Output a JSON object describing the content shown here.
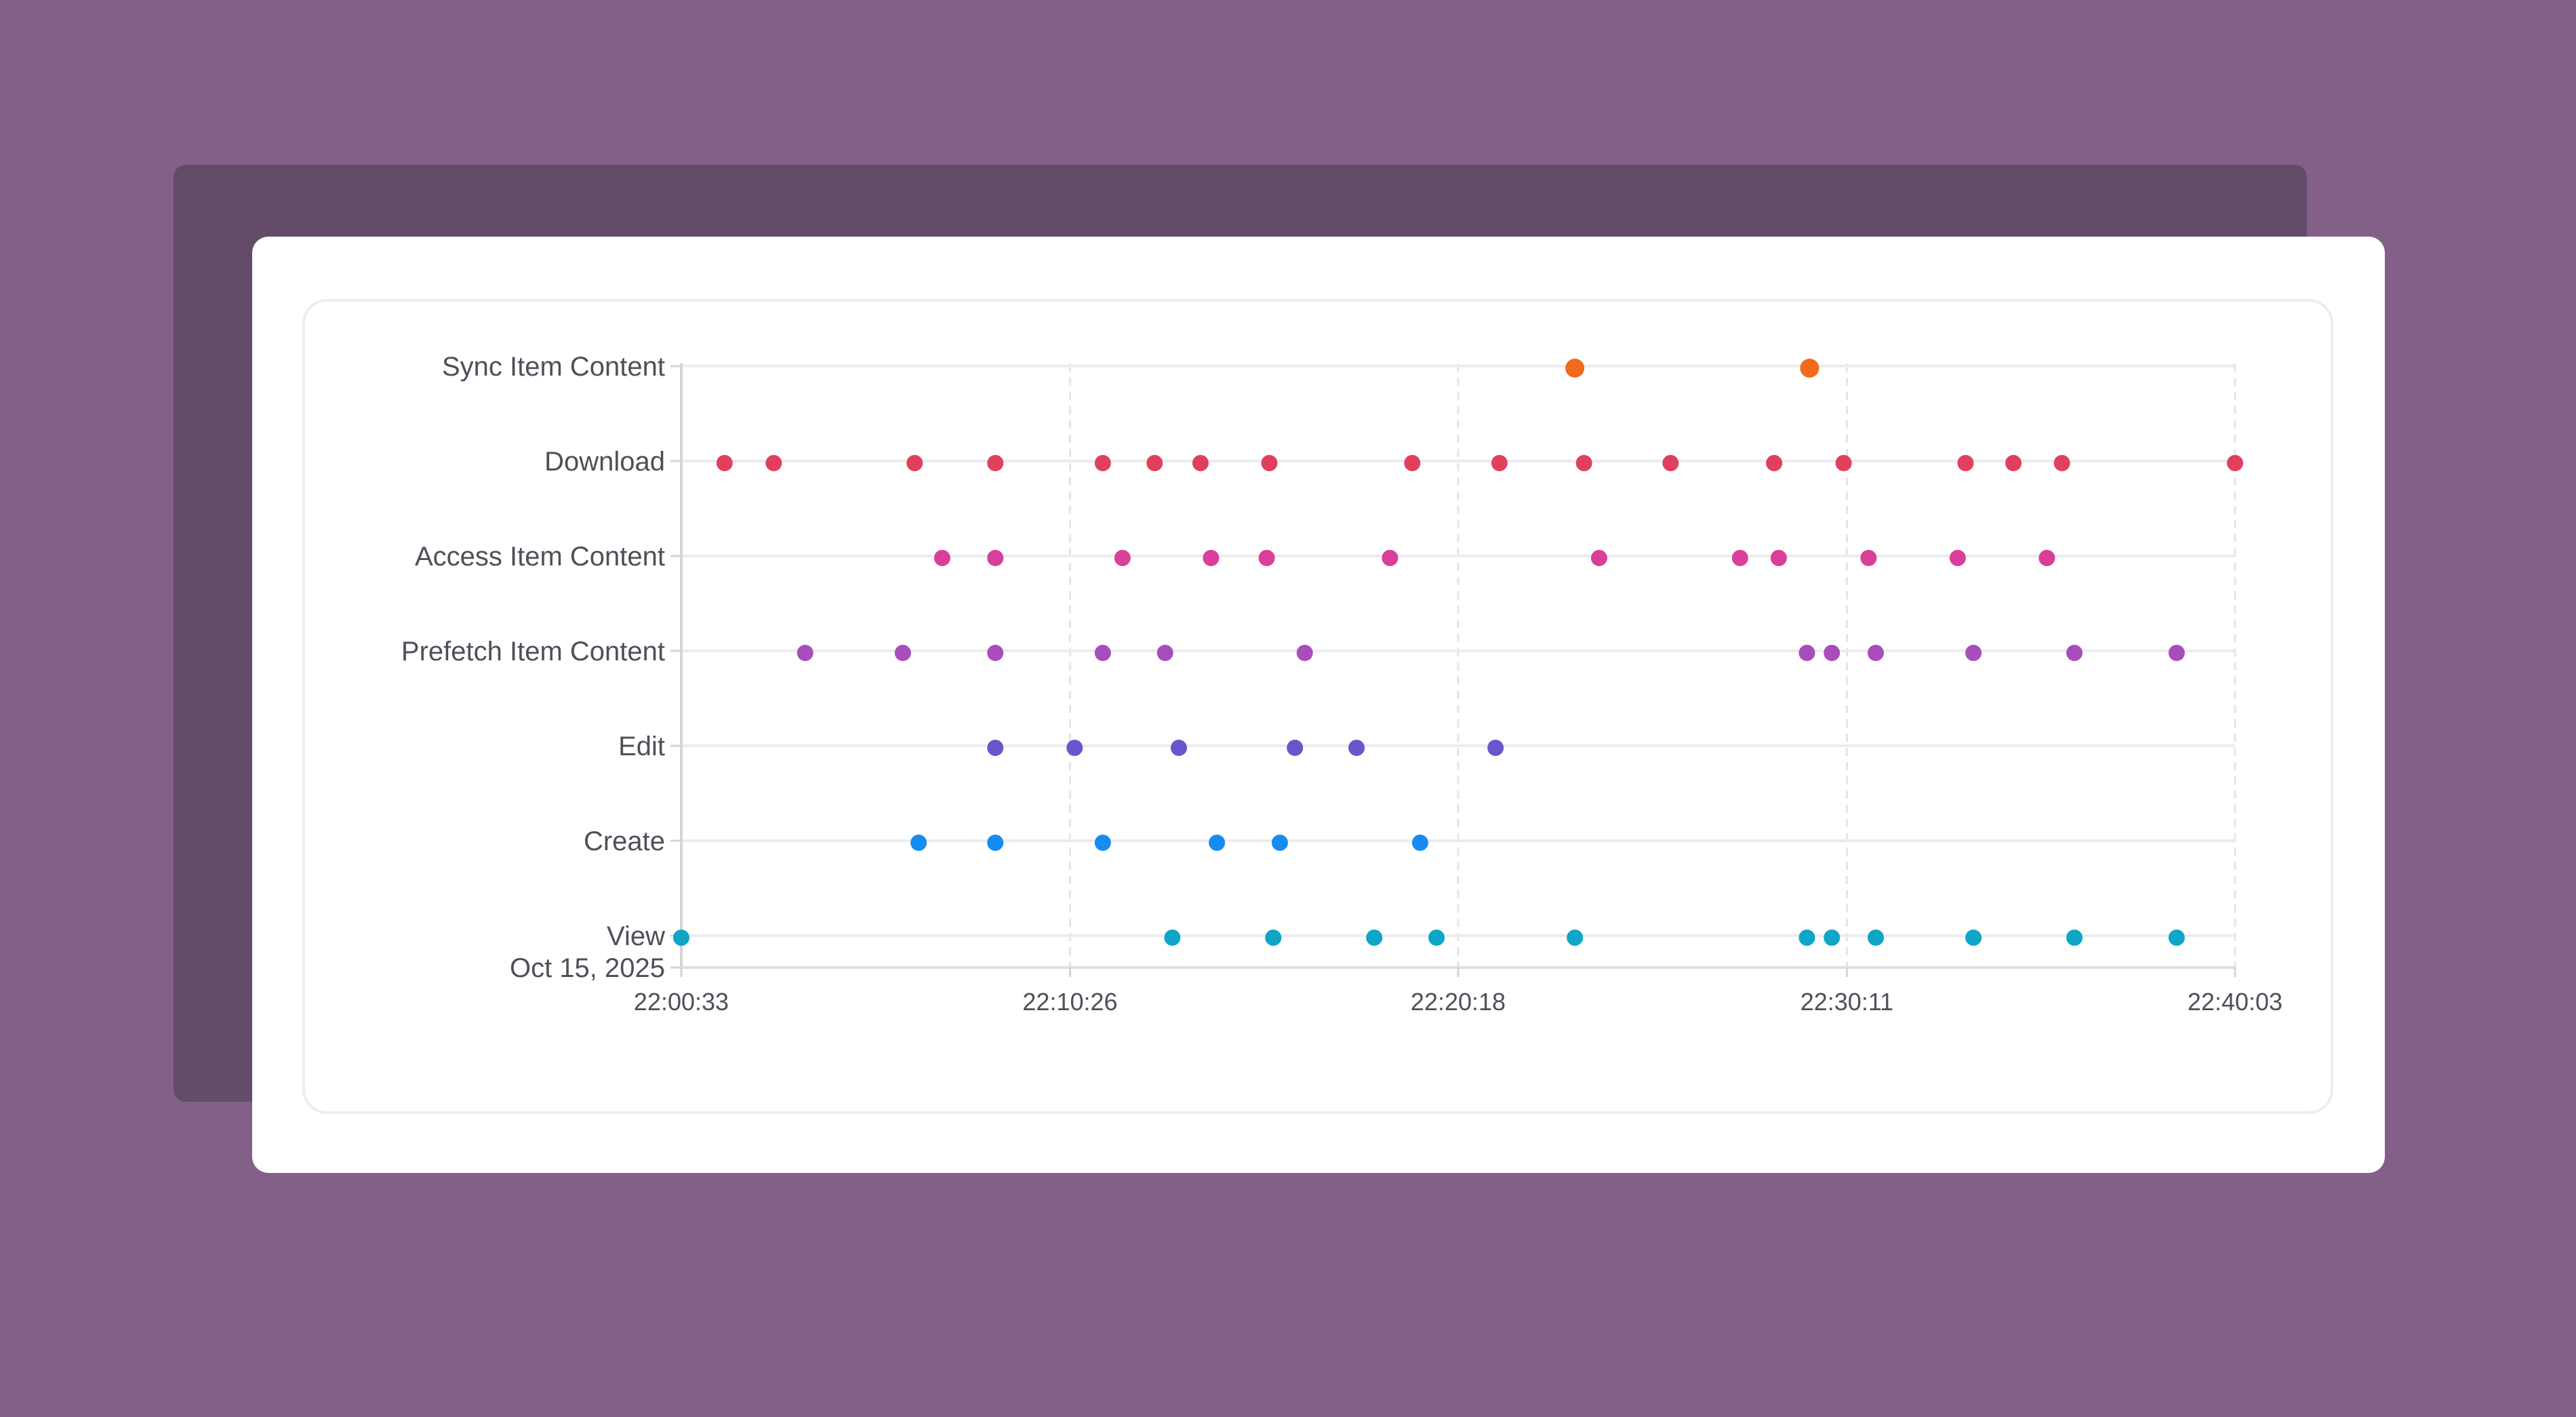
{
  "chart_data": {
    "type": "scatter",
    "title": "",
    "xlabel": "",
    "ylabel": "",
    "date_label": "Oct 15, 2025",
    "x_ticks": [
      "22:00:33",
      "22:10:26",
      "22:20:18",
      "22:30:11",
      "22:40:03"
    ],
    "xlim": [
      "22:00:33",
      "22:40:03"
    ],
    "grid": "vertical-dashed",
    "categories": [
      "Sync Item Content",
      "Download",
      "Access Item Content",
      "Prefetch Item Content",
      "Edit",
      "Create",
      "View"
    ],
    "series": [
      {
        "category": "Sync Item Content",
        "color": "#f26a1b",
        "times": [
          "22:23:16",
          "22:29:14"
        ]
      },
      {
        "category": "Download",
        "color": "#e0405e",
        "times": [
          "22:01:39",
          "22:02:54",
          "22:06:29",
          "22:08:32",
          "22:11:16",
          "22:12:35",
          "22:13:45",
          "22:15:30",
          "22:19:08",
          "22:21:21",
          "22:23:30",
          "22:25:42",
          "22:28:20",
          "22:30:06",
          "22:33:12",
          "22:34:25",
          "22:35:39",
          "22:40:03"
        ]
      },
      {
        "category": "Access Item Content",
        "color": "#d93f9a",
        "times": [
          "22:07:11",
          "22:08:32",
          "22:11:46",
          "22:14:01",
          "22:15:26",
          "22:18:34",
          "22:23:53",
          "22:27:28",
          "22:28:27",
          "22:30:44",
          "22:33:00",
          "22:35:16"
        ]
      },
      {
        "category": "Prefetch Item Content",
        "color": "#a94cbc",
        "times": [
          "22:03:42",
          "22:06:11",
          "22:08:32",
          "22:11:16",
          "22:12:51",
          "22:16:24",
          "22:29:10",
          "22:29:48",
          "22:30:55",
          "22:33:24",
          "22:35:58",
          "22:38:34"
        ]
      },
      {
        "category": "Edit",
        "color": "#6b55cc",
        "times": [
          "22:08:32",
          "22:10:33",
          "22:13:12",
          "22:16:09",
          "22:17:43",
          "22:21:15"
        ]
      },
      {
        "category": "Create",
        "color": "#168cf0",
        "times": [
          "22:06:35",
          "22:08:32",
          "22:11:16",
          "22:14:10",
          "22:15:46",
          "22:19:20"
        ]
      },
      {
        "category": "View",
        "color": "#0ea6c6",
        "times": [
          "22:00:33",
          "22:13:02",
          "22:15:36",
          "22:18:10",
          "22:19:45",
          "22:23:16",
          "22:29:10",
          "22:29:48",
          "22:30:55",
          "22:33:24",
          "22:35:58",
          "22:38:34"
        ]
      }
    ]
  }
}
